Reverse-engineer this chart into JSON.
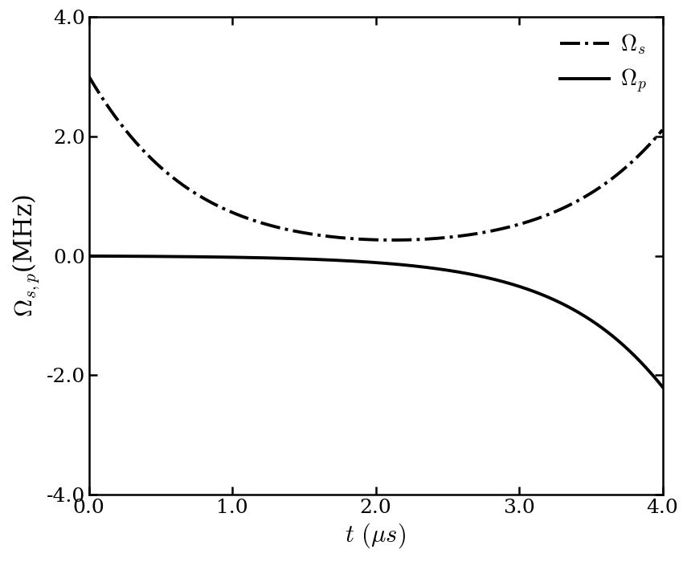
{
  "t_start": 0.0,
  "t_end": 4.0,
  "ylim": [
    -4.0,
    4.0
  ],
  "xlim": [
    0.0,
    4.0
  ],
  "xticks": [
    0.0,
    1.0,
    2.0,
    3.0,
    4.0
  ],
  "yticks": [
    -4.0,
    -2.0,
    0.0,
    2.0,
    4.0
  ],
  "line_color": "#000000",
  "background_color": "#ffffff",
  "linewidth": 2.8,
  "omega_s_A1": 7.056,
  "omega_s_A2": 4.939,
  "omega_s_b": 1.5,
  "omega_s_t1": -1.0,
  "omega_s_t2": 5.0,
  "omega_p_A": 5.17,
  "omega_p_b": 1.5,
  "omega_p_t0": 5.0,
  "tick_labelsize": 18,
  "xlabel_fontsize": 22,
  "ylabel_fontsize": 22,
  "legend_fontsize": 20
}
